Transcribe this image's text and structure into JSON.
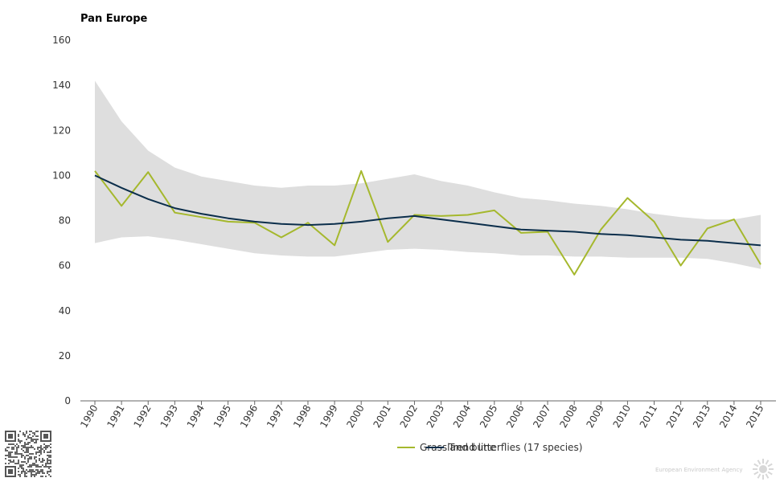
{
  "chart_data": {
    "type": "line",
    "title": "Pan Europe",
    "xlabel": "",
    "ylabel": "",
    "ylim": [
      0,
      160
    ],
    "yticks": [
      0,
      20,
      40,
      60,
      80,
      100,
      120,
      140,
      160
    ],
    "x": [
      "1990",
      "1991",
      "1992",
      "1993",
      "1994",
      "1995",
      "1996",
      "1997",
      "1998",
      "1999",
      "2000",
      "2001",
      "2002",
      "2003",
      "2004",
      "2005",
      "2006",
      "2007",
      "2008",
      "2009",
      "2010",
      "2011",
      "2012",
      "2013",
      "2014",
      "2015"
    ],
    "band": {
      "upper": [
        142,
        124,
        111,
        103.5,
        99.5,
        97.5,
        95.5,
        94.5,
        95.5,
        95.5,
        96.5,
        98.5,
        100.5,
        97.5,
        95.5,
        92.5,
        90,
        89,
        87.5,
        86.5,
        85,
        83,
        81.5,
        80.5,
        80.5,
        82.5
      ],
      "lower": [
        70,
        72.5,
        73,
        71.5,
        69.5,
        67.5,
        65.5,
        64.5,
        64,
        64,
        65.5,
        67,
        67.5,
        67,
        66,
        65.5,
        64.5,
        64.5,
        64,
        64,
        63.5,
        63.5,
        63.5,
        63,
        61,
        58.5
      ],
      "color": "#dedede"
    },
    "series": [
      {
        "name": "Grassland butterflies (17 species)",
        "color": "#a5b82d",
        "values": [
          102,
          86.5,
          101.5,
          83.5,
          81.5,
          79.5,
          79,
          72.5,
          79,
          69,
          102,
          70.5,
          82.5,
          82,
          82.5,
          84.5,
          74.5,
          75,
          56,
          76,
          90,
          79.5,
          60,
          76.5,
          80.5,
          60.5
        ]
      },
      {
        "name": "Trend line",
        "color": "#0b2e4b",
        "values": [
          100,
          94.5,
          89.5,
          85.5,
          83,
          81,
          79.5,
          78.5,
          78,
          78.5,
          79.5,
          81,
          82,
          80.5,
          79,
          77.5,
          76,
          75.5,
          75,
          74,
          73.5,
          72.5,
          71.5,
          71,
          70,
          69
        ]
      }
    ],
    "grid": false,
    "legend": "bottom-center"
  },
  "footer": {
    "agency": "European Environment Agency"
  }
}
